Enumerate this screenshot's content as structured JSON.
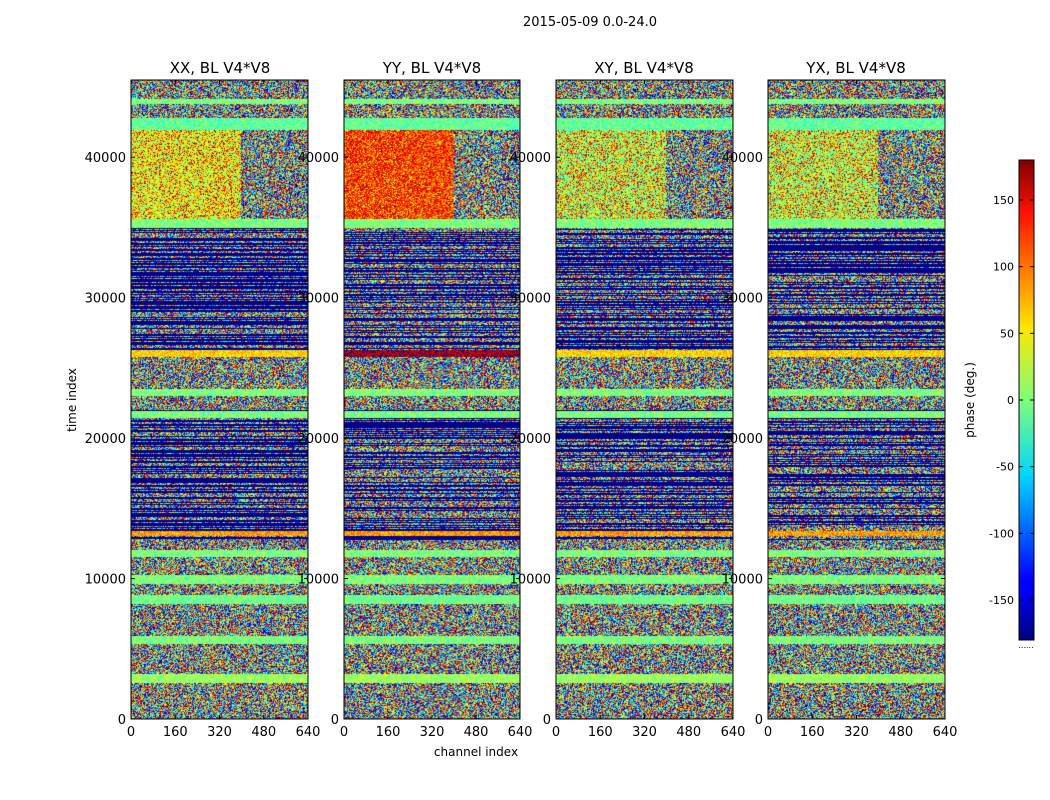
{
  "chart_data": {
    "type": "heatmap",
    "suptitle": "2015-05-09 0.0-24.0",
    "xlabel": "channel index",
    "ylabel": "time index",
    "xlim": [
      0,
      640
    ],
    "ylim": [
      0,
      45500
    ],
    "x_ticks": [
      0,
      160,
      320,
      480,
      640
    ],
    "y_ticks": [
      0,
      10000,
      20000,
      30000,
      40000
    ],
    "panels": [
      {
        "title": "XX, BL V4*V8",
        "pol": "XX"
      },
      {
        "title": "YY, BL V4*V8",
        "pol": "YY"
      },
      {
        "title": "XY, BL V4*V8",
        "pol": "XY"
      },
      {
        "title": "YX, BL V4*V8",
        "pol": "YX"
      }
    ],
    "colorbar": {
      "label": "phase (deg.)",
      "range": [
        -180,
        180
      ],
      "ticks": [
        -150,
        -100,
        -50,
        0,
        50,
        100,
        150
      ],
      "colormap": "jet"
    },
    "row_features": [
      {
        "t_range": [
          0,
          1800
        ],
        "mean_phase_deg": 0,
        "kind": "noise"
      },
      {
        "t_range": [
          2500,
          3200
        ],
        "mean_phase_deg": 10,
        "kind": "band"
      },
      {
        "t_range": [
          5300,
          5900
        ],
        "mean_phase_deg": 0,
        "kind": "band"
      },
      {
        "t_range": [
          8200,
          8800
        ],
        "mean_phase_deg": -5,
        "kind": "band"
      },
      {
        "t_range": [
          9600,
          10200
        ],
        "mean_phase_deg": 0,
        "kind": "band"
      },
      {
        "t_range": [
          11500,
          12000
        ],
        "mean_phase_deg": 0,
        "kind": "band"
      },
      {
        "t_range": [
          12700,
          22000
        ],
        "mean_phase_deg": -175,
        "kind": "stripes"
      },
      {
        "t_range": [
          13000,
          13400
        ],
        "mean_phase_deg": 80,
        "kind": "band"
      },
      {
        "t_range": [
          21400,
          21900
        ],
        "mean_phase_deg": 0,
        "kind": "band"
      },
      {
        "t_range": [
          23000,
          23500
        ],
        "mean_phase_deg": 0,
        "kind": "band"
      },
      {
        "t_range": [
          25800,
          26300
        ],
        "mean_phase_deg": 60,
        "kind": "band"
      },
      {
        "t_range": [
          26300,
          35000
        ],
        "mean_phase_deg": -175,
        "kind": "stripes"
      },
      {
        "t_range": [
          35000,
          35600
        ],
        "mean_phase_deg": 0,
        "kind": "band"
      },
      {
        "t_range": [
          35600,
          42000
        ],
        "mean_phase_deg": 20,
        "kind": "warm_region"
      },
      {
        "t_range": [
          42000,
          42800
        ],
        "mean_phase_deg": -10,
        "kind": "band"
      },
      {
        "t_range": [
          43800,
          44200
        ],
        "mean_phase_deg": 0,
        "kind": "band"
      }
    ]
  }
}
